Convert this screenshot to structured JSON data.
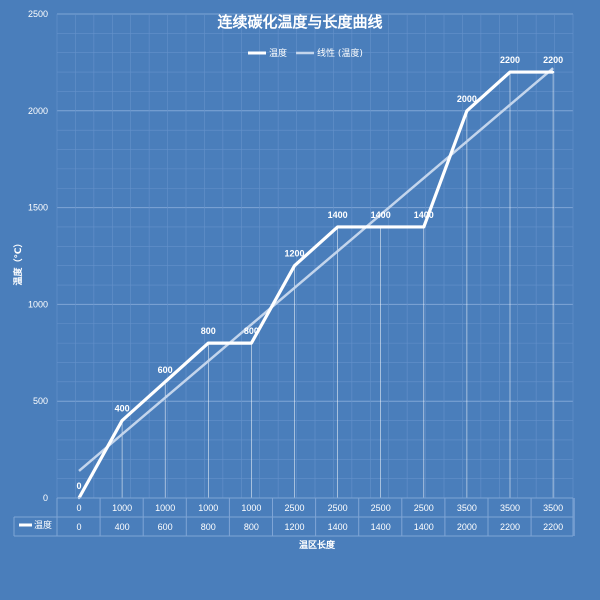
{
  "colors": {
    "background": "#4a7ebb",
    "series": "#ffffff",
    "trend": "#c3d5ec",
    "grid": "#7fa5d6",
    "grid_minor": "#6592cb"
  },
  "chart_data": {
    "type": "line",
    "title": "连续碳化温度与长度曲线",
    "xlabel": "温区长度",
    "ylabel": "温度（℃）",
    "ylim": [
      0,
      2500
    ],
    "yticks": [
      "0",
      "500",
      "1000",
      "1500",
      "2000",
      "2500"
    ],
    "categories": [
      "0",
      "1000",
      "1000",
      "1000",
      "1000",
      "2500",
      "2500",
      "2500",
      "2500",
      "3500",
      "3500",
      "3500"
    ],
    "series": [
      {
        "name": "温度",
        "values": [
          0,
          400,
          600,
          800,
          800,
          1200,
          1400,
          1400,
          1400,
          2000,
          2200,
          2200
        ],
        "labels": [
          "0",
          "400",
          "600",
          "800",
          "800",
          "1200",
          "1400",
          "1400",
          "1400",
          "2000",
          "2200",
          "2200"
        ]
      }
    ],
    "trendline": {
      "name": "线性 (温度)",
      "start": 140,
      "end": 2220
    },
    "data_table": {
      "row_label": "温度",
      "values": [
        "0",
        "400",
        "600",
        "800",
        "800",
        "1200",
        "1400",
        "1400",
        "1400",
        "2000",
        "2200",
        "2200"
      ]
    },
    "grid": true,
    "legend": "top-center"
  }
}
